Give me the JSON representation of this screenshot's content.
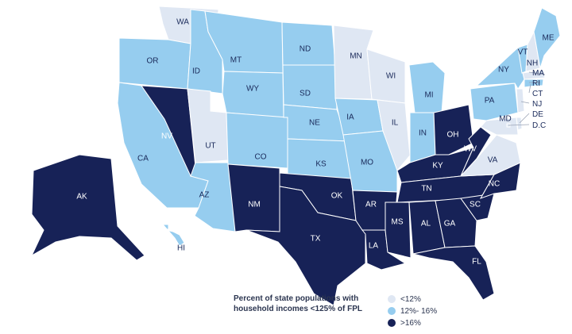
{
  "colors": {
    "low": "#dfe7f3",
    "mid": "#96cdef",
    "high": "#172257"
  },
  "legend": {
    "title": "Percent of state populations with household incomes <125% of FPL",
    "items": [
      {
        "key": "low",
        "label": "<12%"
      },
      {
        "key": "mid",
        "label": "12%- 16%"
      },
      {
        "key": "high",
        "label": ">16%"
      }
    ]
  },
  "states": [
    {
      "code": "WA",
      "cat": "low"
    },
    {
      "code": "OR",
      "cat": "mid"
    },
    {
      "code": "CA",
      "cat": "mid"
    },
    {
      "code": "ID",
      "cat": "mid"
    },
    {
      "code": "NV",
      "cat": "high"
    },
    {
      "code": "UT",
      "cat": "low"
    },
    {
      "code": "AZ",
      "cat": "mid"
    },
    {
      "code": "MT",
      "cat": "mid"
    },
    {
      "code": "WY",
      "cat": "mid"
    },
    {
      "code": "CO",
      "cat": "mid"
    },
    {
      "code": "NM",
      "cat": "high"
    },
    {
      "code": "ND",
      "cat": "mid"
    },
    {
      "code": "SD",
      "cat": "mid"
    },
    {
      "code": "NE",
      "cat": "mid"
    },
    {
      "code": "KS",
      "cat": "mid"
    },
    {
      "code": "OK",
      "cat": "high"
    },
    {
      "code": "TX",
      "cat": "high"
    },
    {
      "code": "MN",
      "cat": "low"
    },
    {
      "code": "IA",
      "cat": "mid"
    },
    {
      "code": "MO",
      "cat": "mid"
    },
    {
      "code": "AR",
      "cat": "high"
    },
    {
      "code": "LA",
      "cat": "high"
    },
    {
      "code": "WI",
      "cat": "low"
    },
    {
      "code": "IL",
      "cat": "low"
    },
    {
      "code": "MI",
      "cat": "mid"
    },
    {
      "code": "IN",
      "cat": "mid"
    },
    {
      "code": "OH",
      "cat": "high"
    },
    {
      "code": "KY",
      "cat": "high"
    },
    {
      "code": "TN",
      "cat": "high"
    },
    {
      "code": "MS",
      "cat": "high"
    },
    {
      "code": "AL",
      "cat": "high"
    },
    {
      "code": "GA",
      "cat": "high"
    },
    {
      "code": "FL",
      "cat": "high"
    },
    {
      "code": "SC",
      "cat": "high"
    },
    {
      "code": "NC",
      "cat": "high"
    },
    {
      "code": "VA",
      "cat": "low"
    },
    {
      "code": "WV",
      "cat": "high"
    },
    {
      "code": "MD",
      "cat": "low"
    },
    {
      "code": "PA",
      "cat": "mid"
    },
    {
      "code": "NY",
      "cat": "mid"
    },
    {
      "code": "VT",
      "cat": "mid"
    },
    {
      "code": "NH",
      "cat": "low"
    },
    {
      "code": "ME",
      "cat": "mid"
    },
    {
      "code": "AK",
      "cat": "high"
    },
    {
      "code": "HI",
      "cat": "mid"
    },
    {
      "code": "MA",
      "cat": "low"
    },
    {
      "code": "RI",
      "cat": "mid"
    },
    {
      "code": "CT",
      "cat": "mid"
    },
    {
      "code": "NJ",
      "cat": "low"
    },
    {
      "code": "DE",
      "cat": "low"
    },
    {
      "code": "D.C",
      "cat": "low"
    }
  ]
}
